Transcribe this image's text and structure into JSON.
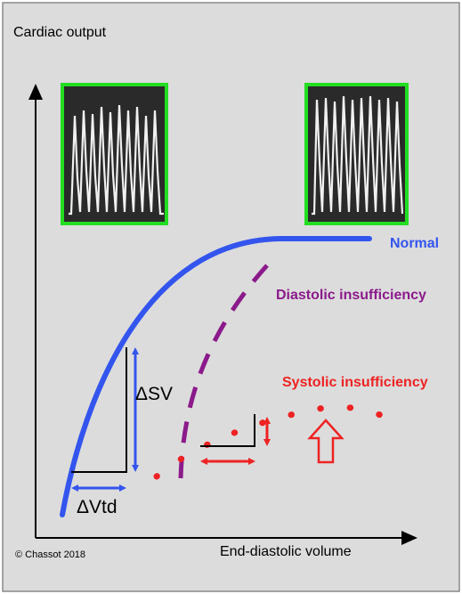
{
  "y_axis_label": "Cardiac output",
  "x_axis_label": "End-diastolic volume",
  "curves": {
    "normal": {
      "label": "Normal",
      "color": "#3355ee"
    },
    "diastolic": {
      "label": "Diastolic insufficiency",
      "color": "#8b1a8b"
    },
    "systolic": {
      "label": "Systolic insufficiency",
      "color": "#ee2222"
    }
  },
  "annotations": {
    "delta_sv": "ΔSV",
    "delta_vtd": "ΔVtd"
  },
  "copyright": "© Chassot 2018",
  "colors": {
    "background": "#dcdcdc",
    "border": "#8a8a8a",
    "axis": "#000000",
    "monitor_frame": "#22dd22",
    "monitor_screen": "#2a2a2a",
    "monitor_trace": "#f0f0f0"
  },
  "icons": [
    "pressure-trace-left",
    "pressure-trace-right",
    "up-arrow-icon"
  ]
}
